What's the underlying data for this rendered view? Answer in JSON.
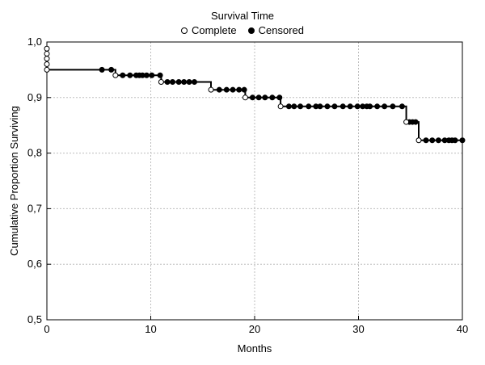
{
  "chart_data": {
    "type": "line",
    "legend": {
      "title": "Survival Time",
      "entries": [
        {
          "label": "Complete",
          "marker": "open-circle"
        },
        {
          "label": "Censored",
          "marker": "filled-circle"
        }
      ],
      "placement": "top-center"
    },
    "xlabel": "Months",
    "ylabel": "Cumulative Proportion Surviving",
    "xlim": [
      0,
      40
    ],
    "ylim": [
      0.5,
      1.0
    ],
    "xticks": [
      0,
      10,
      20,
      30,
      40
    ],
    "xtick_labels": [
      "0",
      "10",
      "20",
      "30",
      "40"
    ],
    "yticks": [
      0.5,
      0.6,
      0.7,
      0.8,
      0.9,
      1.0
    ],
    "ytick_labels": [
      "0,5",
      "0,6",
      "0,7",
      "0,8",
      "0,9",
      "1,0"
    ],
    "grid": true,
    "series": [
      {
        "step_points": [
          [
            0,
            0.95
          ],
          [
            6.6,
            0.95
          ],
          [
            6.6,
            0.94
          ],
          [
            11.0,
            0.94
          ],
          [
            11.0,
            0.928
          ],
          [
            15.8,
            0.928
          ],
          [
            15.8,
            0.914
          ],
          [
            19.1,
            0.914
          ],
          [
            19.1,
            0.9
          ],
          [
            22.5,
            0.9
          ],
          [
            22.5,
            0.884
          ],
          [
            34.6,
            0.884
          ],
          [
            34.6,
            0.856
          ],
          [
            35.8,
            0.856
          ],
          [
            35.8,
            0.823
          ],
          [
            40,
            0.823
          ]
        ],
        "complete": [
          [
            0,
            0.988
          ],
          [
            0,
            0.979
          ],
          [
            0,
            0.97
          ],
          [
            0,
            0.96
          ],
          [
            0,
            0.95
          ],
          [
            6.6,
            0.94
          ],
          [
            11.0,
            0.928
          ],
          [
            15.8,
            0.914
          ],
          [
            19.1,
            0.9
          ],
          [
            22.5,
            0.884
          ],
          [
            34.6,
            0.856
          ],
          [
            35.8,
            0.823
          ]
        ],
        "censored": [
          [
            5.3,
            0.95
          ],
          [
            6.2,
            0.95
          ],
          [
            7.3,
            0.94
          ],
          [
            8.0,
            0.94
          ],
          [
            8.6,
            0.94
          ],
          [
            8.9,
            0.94
          ],
          [
            9.2,
            0.94
          ],
          [
            9.6,
            0.94
          ],
          [
            10.1,
            0.94
          ],
          [
            10.9,
            0.94
          ],
          [
            11.6,
            0.928
          ],
          [
            12.1,
            0.928
          ],
          [
            12.7,
            0.928
          ],
          [
            13.2,
            0.928
          ],
          [
            13.7,
            0.928
          ],
          [
            14.2,
            0.928
          ],
          [
            16.6,
            0.914
          ],
          [
            17.3,
            0.914
          ],
          [
            17.9,
            0.914
          ],
          [
            18.5,
            0.914
          ],
          [
            19.0,
            0.914
          ],
          [
            19.8,
            0.9
          ],
          [
            20.4,
            0.9
          ],
          [
            21.0,
            0.9
          ],
          [
            21.7,
            0.9
          ],
          [
            22.4,
            0.9
          ],
          [
            23.3,
            0.884
          ],
          [
            23.8,
            0.884
          ],
          [
            24.4,
            0.884
          ],
          [
            25.2,
            0.884
          ],
          [
            25.9,
            0.884
          ],
          [
            26.3,
            0.884
          ],
          [
            27.0,
            0.884
          ],
          [
            27.7,
            0.884
          ],
          [
            28.5,
            0.884
          ],
          [
            29.2,
            0.884
          ],
          [
            29.9,
            0.884
          ],
          [
            30.4,
            0.884
          ],
          [
            30.8,
            0.884
          ],
          [
            31.1,
            0.884
          ],
          [
            31.8,
            0.884
          ],
          [
            32.5,
            0.884
          ],
          [
            33.3,
            0.884
          ],
          [
            34.2,
            0.884
          ],
          [
            34.9,
            0.856
          ],
          [
            35.2,
            0.856
          ],
          [
            35.5,
            0.856
          ],
          [
            36.5,
            0.823
          ],
          [
            37.1,
            0.823
          ],
          [
            37.7,
            0.823
          ],
          [
            38.3,
            0.823
          ],
          [
            38.7,
            0.823
          ],
          [
            39.0,
            0.823
          ],
          [
            39.3,
            0.823
          ],
          [
            40,
            0.823
          ]
        ]
      }
    ]
  }
}
